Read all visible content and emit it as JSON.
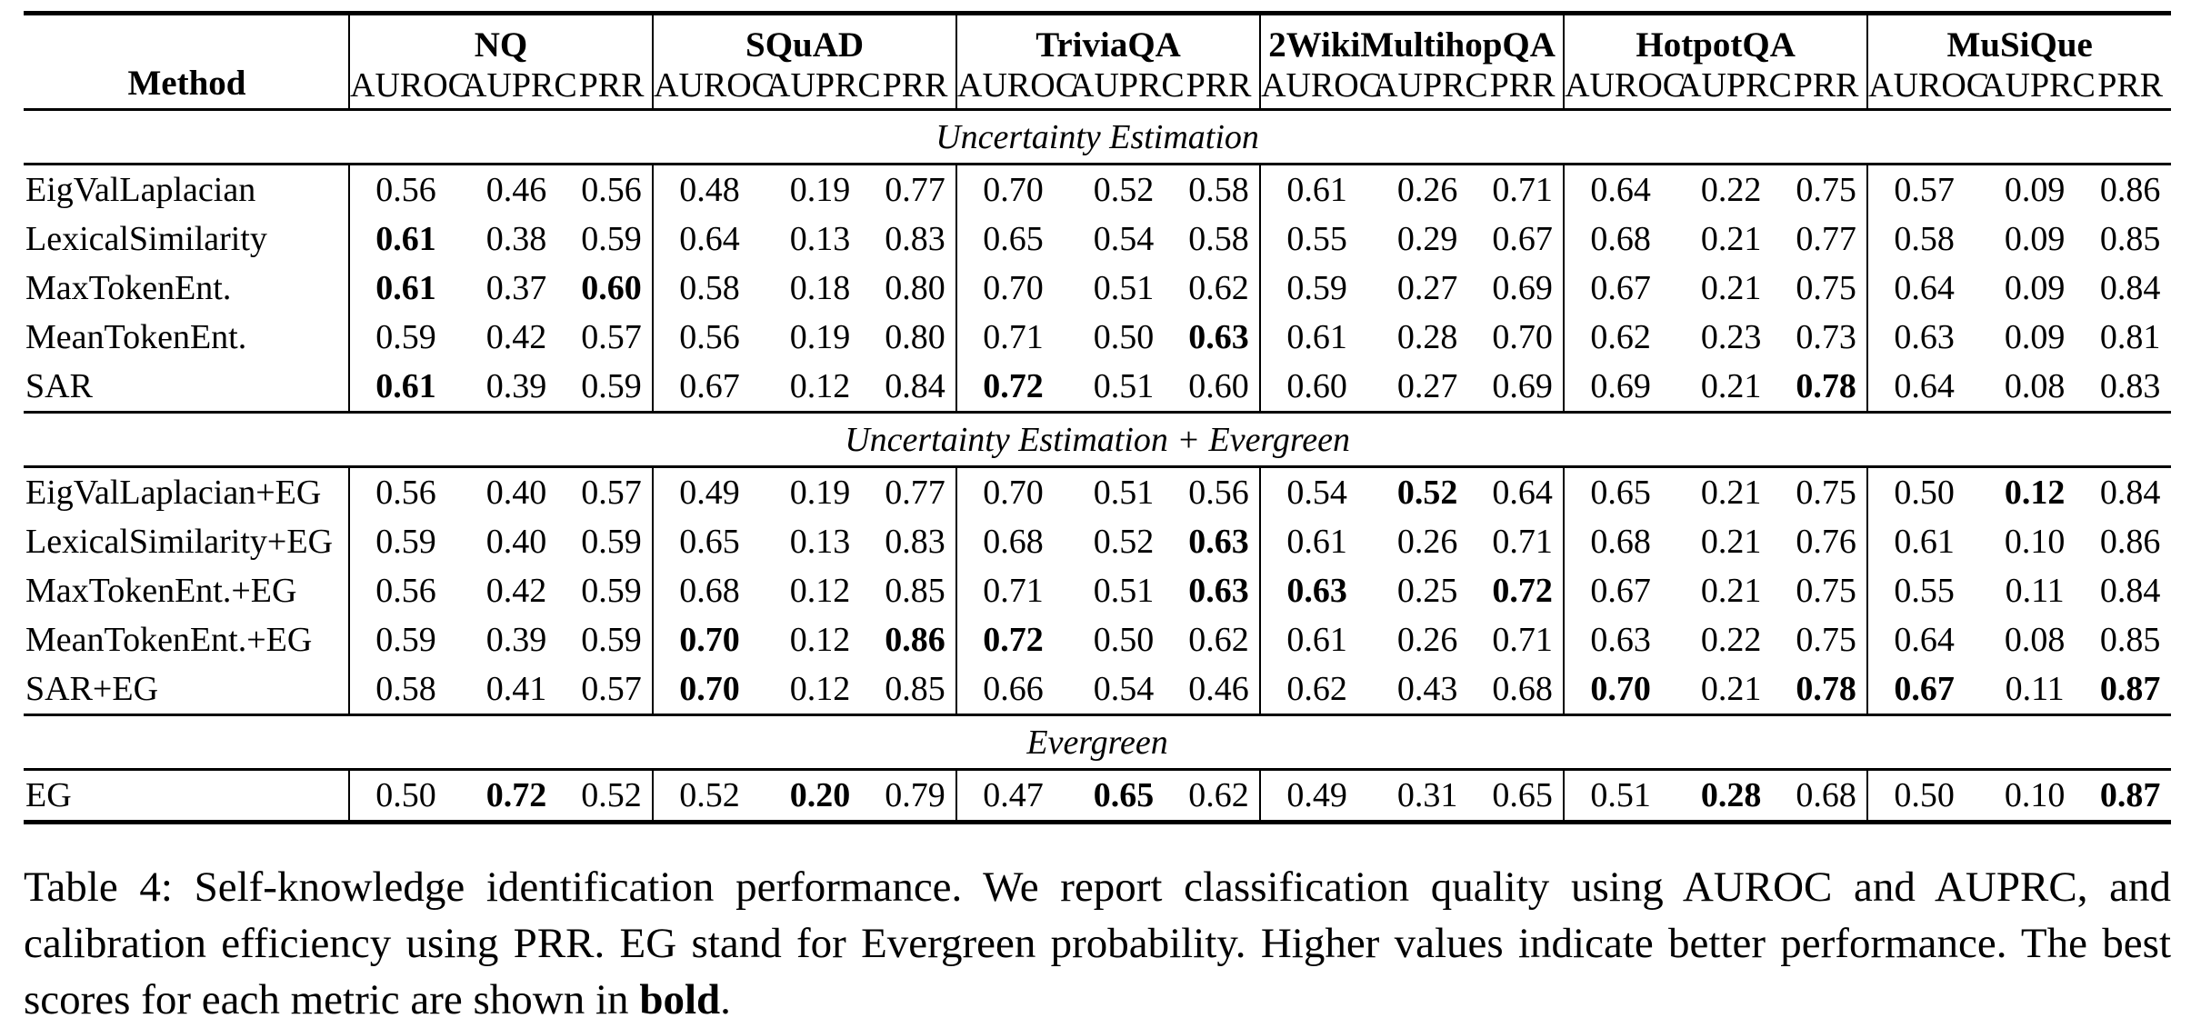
{
  "table": {
    "corner_label": "Method",
    "metrics": [
      "AUROC",
      "AUPRC",
      "PRR"
    ],
    "groups": [
      {
        "name": "NQ"
      },
      {
        "name": "SQuAD"
      },
      {
        "name": "TriviaQA"
      },
      {
        "name": "2WikiMultihopQA"
      },
      {
        "name": "HotpotQA"
      },
      {
        "name": "MuSiQue"
      }
    ],
    "sections": [
      {
        "title": "Uncertainty Estimation",
        "rows": [
          {
            "method": "EigValLaplacian",
            "values": [
              "0.56",
              "0.46",
              "0.56",
              "0.48",
              "0.19",
              "0.77",
              "0.70",
              "0.52",
              "0.58",
              "0.61",
              "0.26",
              "0.71",
              "0.64",
              "0.22",
              "0.75",
              "0.57",
              "0.09",
              "0.86"
            ],
            "bold": []
          },
          {
            "method": "LexicalSimilarity",
            "values": [
              "0.61",
              "0.38",
              "0.59",
              "0.64",
              "0.13",
              "0.83",
              "0.65",
              "0.54",
              "0.58",
              "0.55",
              "0.29",
              "0.67",
              "0.68",
              "0.21",
              "0.77",
              "0.58",
              "0.09",
              "0.85"
            ],
            "bold": [
              0
            ]
          },
          {
            "method": "MaxTokenEnt.",
            "values": [
              "0.61",
              "0.37",
              "0.60",
              "0.58",
              "0.18",
              "0.80",
              "0.70",
              "0.51",
              "0.62",
              "0.59",
              "0.27",
              "0.69",
              "0.67",
              "0.21",
              "0.75",
              "0.64",
              "0.09",
              "0.84"
            ],
            "bold": [
              0,
              2
            ]
          },
          {
            "method": "MeanTokenEnt.",
            "values": [
              "0.59",
              "0.42",
              "0.57",
              "0.56",
              "0.19",
              "0.80",
              "0.71",
              "0.50",
              "0.63",
              "0.61",
              "0.28",
              "0.70",
              "0.62",
              "0.23",
              "0.73",
              "0.63",
              "0.09",
              "0.81"
            ],
            "bold": [
              8
            ]
          },
          {
            "method": "SAR",
            "values": [
              "0.61",
              "0.39",
              "0.59",
              "0.67",
              "0.12",
              "0.84",
              "0.72",
              "0.51",
              "0.60",
              "0.60",
              "0.27",
              "0.69",
              "0.69",
              "0.21",
              "0.78",
              "0.64",
              "0.08",
              "0.83"
            ],
            "bold": [
              0,
              6,
              14
            ]
          }
        ]
      },
      {
        "title": "Uncertainty Estimation + Evergreen",
        "rows": [
          {
            "method": "EigValLaplacian+EG",
            "values": [
              "0.56",
              "0.40",
              "0.57",
              "0.49",
              "0.19",
              "0.77",
              "0.70",
              "0.51",
              "0.56",
              "0.54",
              "0.52",
              "0.64",
              "0.65",
              "0.21",
              "0.75",
              "0.50",
              "0.12",
              "0.84"
            ],
            "bold": [
              10,
              16
            ]
          },
          {
            "method": "LexicalSimilarity+EG",
            "values": [
              "0.59",
              "0.40",
              "0.59",
              "0.65",
              "0.13",
              "0.83",
              "0.68",
              "0.52",
              "0.63",
              "0.61",
              "0.26",
              "0.71",
              "0.68",
              "0.21",
              "0.76",
              "0.61",
              "0.10",
              "0.86"
            ],
            "bold": [
              8
            ]
          },
          {
            "method": "MaxTokenEnt.+EG",
            "values": [
              "0.56",
              "0.42",
              "0.59",
              "0.68",
              "0.12",
              "0.85",
              "0.71",
              "0.51",
              "0.63",
              "0.63",
              "0.25",
              "0.72",
              "0.67",
              "0.21",
              "0.75",
              "0.55",
              "0.11",
              "0.84"
            ],
            "bold": [
              8,
              9,
              11
            ]
          },
          {
            "method": "MeanTokenEnt.+EG",
            "values": [
              "0.59",
              "0.39",
              "0.59",
              "0.70",
              "0.12",
              "0.86",
              "0.72",
              "0.50",
              "0.62",
              "0.61",
              "0.26",
              "0.71",
              "0.63",
              "0.22",
              "0.75",
              "0.64",
              "0.08",
              "0.85"
            ],
            "bold": [
              3,
              5,
              6
            ]
          },
          {
            "method": "SAR+EG",
            "values": [
              "0.58",
              "0.41",
              "0.57",
              "0.70",
              "0.12",
              "0.85",
              "0.66",
              "0.54",
              "0.46",
              "0.62",
              "0.43",
              "0.68",
              "0.70",
              "0.21",
              "0.78",
              "0.67",
              "0.11",
              "0.87"
            ],
            "bold": [
              3,
              12,
              14,
              15,
              17
            ]
          }
        ]
      },
      {
        "title": "Evergreen",
        "rows": [
          {
            "method": "EG",
            "values": [
              "0.50",
              "0.72",
              "0.52",
              "0.52",
              "0.20",
              "0.79",
              "0.47",
              "0.65",
              "0.62",
              "0.49",
              "0.31",
              "0.65",
              "0.51",
              "0.28",
              "0.68",
              "0.50",
              "0.10",
              "0.87"
            ],
            "bold": [
              1,
              4,
              7,
              13,
              17
            ]
          }
        ]
      }
    ]
  },
  "caption": {
    "main": "Table 4: Self-knowledge identification performance. We report classification quality using AUROC and AUPRC, and calibration efficiency using PRR. EG stand for Evergreen probability. Higher values indicate better performance. The best scores for each metric are shown in ",
    "bold_word": "bold",
    "suffix": "."
  }
}
